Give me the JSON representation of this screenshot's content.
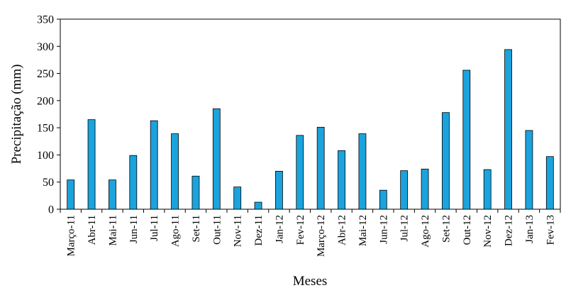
{
  "chart_data": {
    "type": "bar",
    "title": "",
    "xlabel": "Meses",
    "ylabel": "Precipitação (mm)",
    "ylim": [
      0,
      350
    ],
    "yticks": [
      0,
      50,
      100,
      150,
      200,
      250,
      300,
      350
    ],
    "grid": false,
    "legend": "none",
    "bar_color": "#1ba3dd",
    "categories": [
      "Março-11",
      "Abr-11",
      "Mai-11",
      "Jun-11",
      "Jul-11",
      "Ago-11",
      "Set-11",
      "Out-11",
      "Nov-11",
      "Dez-11",
      "Jan-12",
      "Fev-12",
      "Março-12",
      "Abr-12",
      "Mai-12",
      "Jun-12",
      "Jul-12",
      "Ago-12",
      "Set-12",
      "Out-12",
      "Nov-12",
      "Dez-12",
      "Jan-13",
      "Fev-13"
    ],
    "values": [
      54,
      165,
      54,
      99,
      163,
      139,
      61,
      185,
      41,
      13,
      70,
      136,
      151,
      108,
      139,
      35,
      71,
      74,
      178,
      256,
      73,
      294,
      145,
      97
    ]
  }
}
